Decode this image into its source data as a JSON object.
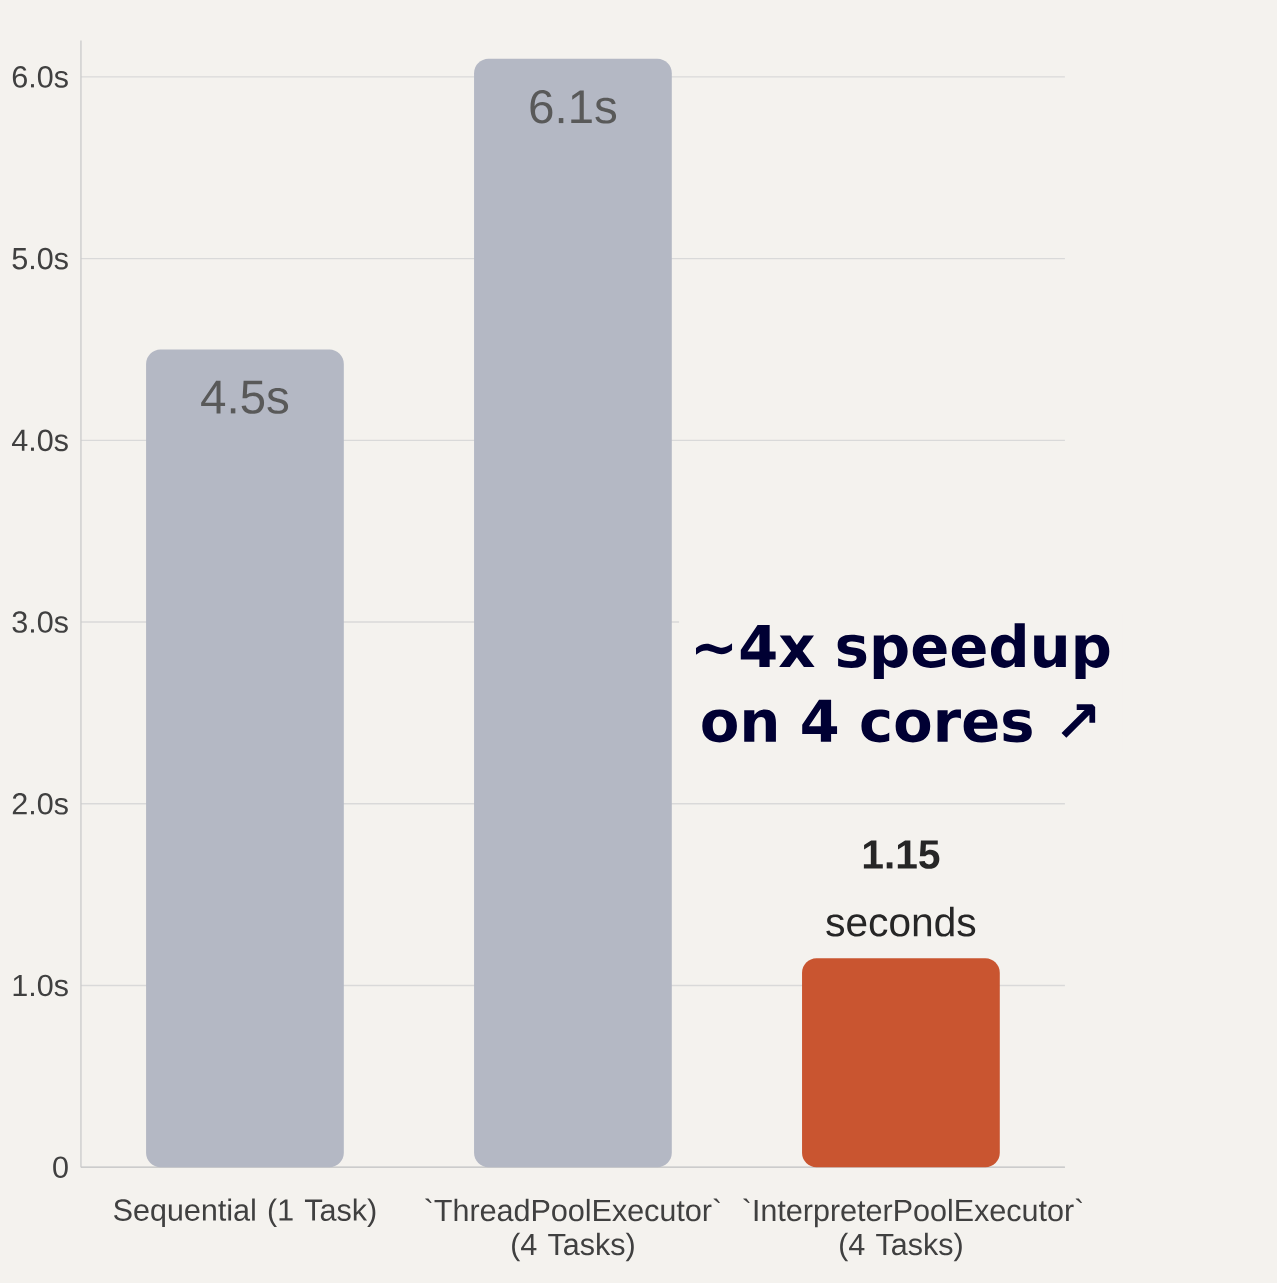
{
  "chart_data": {
    "type": "bar",
    "categories": [
      "Sequential (1 Task)",
      "`ThreadPoolExecutor` (4 Tasks)",
      "`InterpreterPoolExecutor` (4 Tasks)"
    ],
    "values": [
      4.5,
      6.1,
      1.15
    ],
    "colors": [
      "#b4b8c4",
      "#b4b8c4",
      "#c95530"
    ],
    "value_labels": [
      "4.5s",
      "6.1s",
      "**1.15** seconds"
    ],
    "ylim": [
      0,
      6.2
    ],
    "yticks": [
      {
        "value": 0,
        "label": "0"
      },
      {
        "value": 1,
        "label": "1.0s"
      },
      {
        "value": 2,
        "label": "2.0s"
      },
      {
        "value": 3,
        "label": "3.0s"
      },
      {
        "value": 4,
        "label": "4.0s"
      },
      {
        "value": 5,
        "label": "5.0s"
      },
      {
        "value": 6,
        "label": "6.0s"
      }
    ],
    "grid": "y",
    "annotations": [
      "~4x speedup on 4 cores ↗"
    ]
  }
}
